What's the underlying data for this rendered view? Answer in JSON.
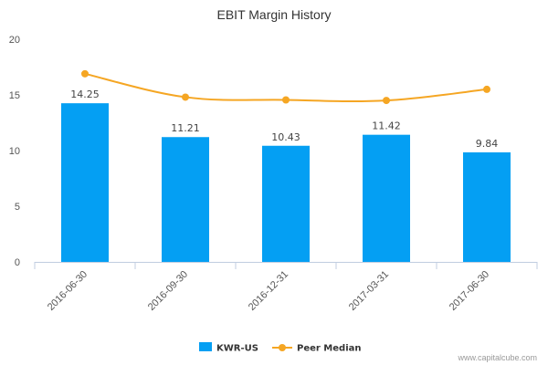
{
  "chart_data": {
    "type": "bar",
    "title": "EBIT Margin History",
    "categories": [
      "2016-06-30",
      "2016-09-30",
      "2016-12-31",
      "2017-03-31",
      "2017-06-30"
    ],
    "series": [
      {
        "name": "KWR-US",
        "type": "bar",
        "color": "#049ff3",
        "values": [
          14.25,
          11.21,
          10.43,
          11.42,
          9.84
        ],
        "data_labels": [
          "14.25",
          "11.21",
          "10.43",
          "11.42",
          "9.84"
        ]
      },
      {
        "name": "Peer Median",
        "type": "line",
        "color": "#f5a623",
        "values": [
          16.9,
          14.8,
          14.55,
          14.5,
          15.5
        ]
      }
    ],
    "ylim": [
      0,
      20
    ],
    "yticks": [
      "0",
      "5",
      "10",
      "15",
      "20"
    ],
    "ytick_values": [
      0,
      5,
      10,
      15,
      20
    ],
    "grid": false,
    "legend_position": "bottom-center"
  },
  "watermark": "www.capitalcube.com"
}
